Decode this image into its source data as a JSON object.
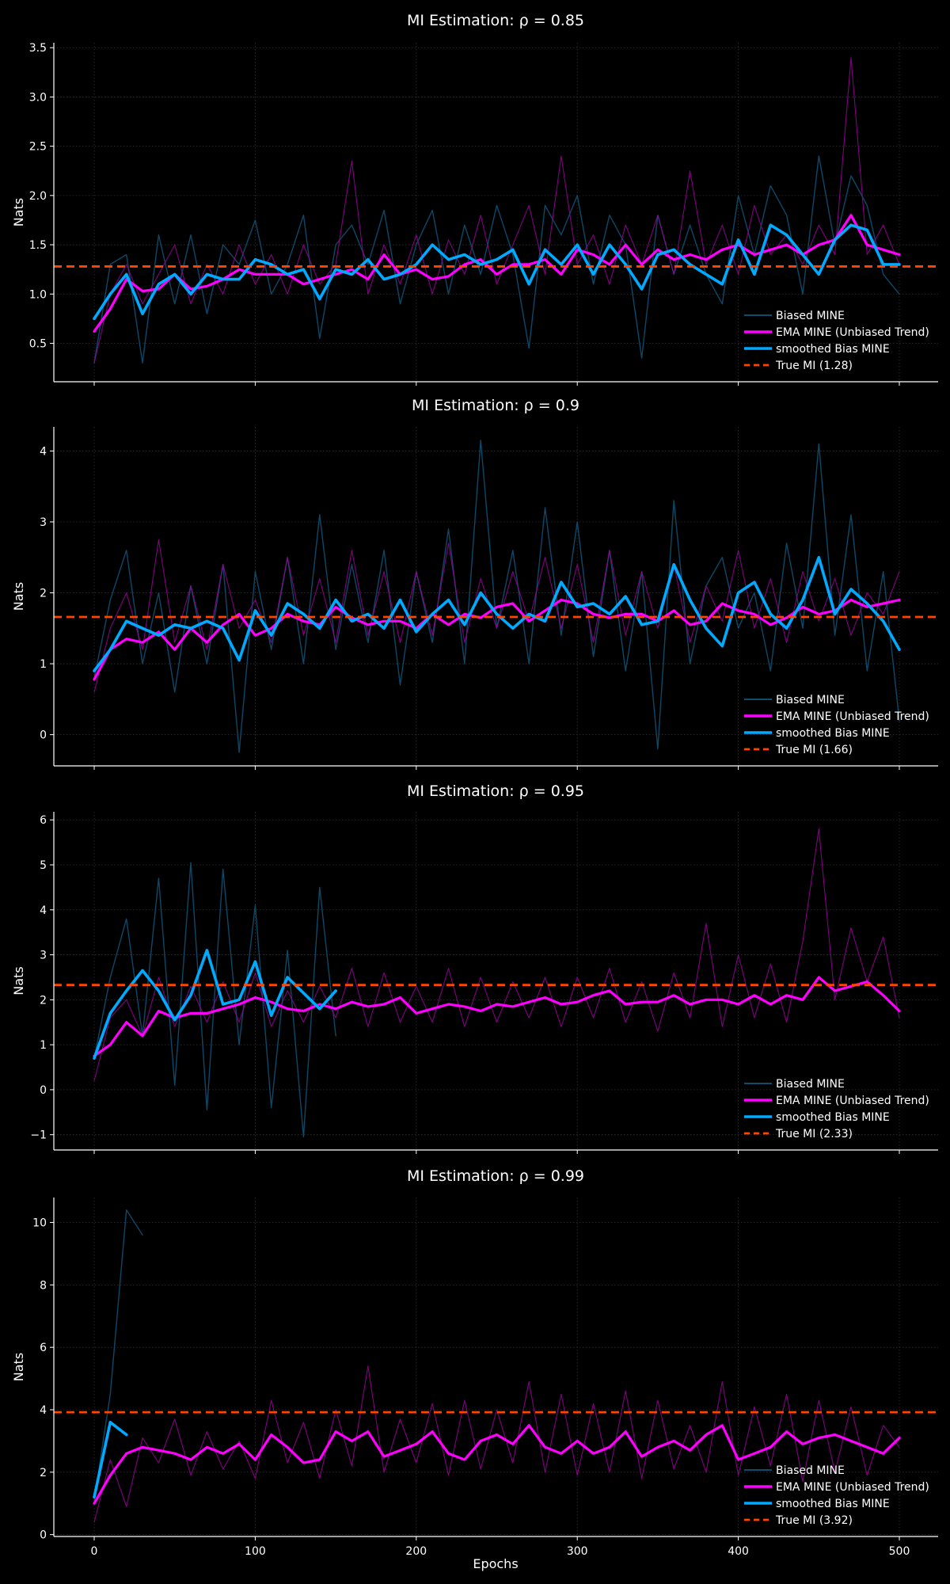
{
  "colors": {
    "background": "#000000",
    "biased_raw": "#0e4c6e",
    "ema_raw": "#9a009a",
    "ema": "#ff00ff",
    "smoothed_bias": "#00aaff",
    "true_mi": "#ff4500",
    "axis": "#ffffff",
    "grid": "#333333"
  },
  "epochs": [
    0,
    10,
    20,
    30,
    40,
    50,
    60,
    70,
    80,
    90,
    100,
    110,
    120,
    130,
    140,
    150,
    160,
    170,
    180,
    190,
    200,
    210,
    220,
    230,
    240,
    250,
    260,
    270,
    280,
    290,
    300,
    310,
    320,
    330,
    340,
    350,
    360,
    370,
    380,
    390,
    400,
    410,
    420,
    430,
    440,
    450,
    460,
    470,
    480,
    490,
    500
  ],
  "chart_data": [
    {
      "type": "line",
      "title": "MI Estimation: ρ = 0.85",
      "xlabel": "",
      "ylabel": "Nats",
      "xlim": [
        -25,
        525
      ],
      "ylim": [
        0.11,
        3.55
      ],
      "xticks": [
        0,
        100,
        200,
        300,
        400,
        500
      ],
      "xtick_labels_shown": false,
      "yticks": [
        0.5,
        1.0,
        1.5,
        2.0,
        2.5,
        3.0,
        3.5
      ],
      "ytick_labels": [
        "0.5",
        "1.0",
        "1.5",
        "2.0",
        "2.5",
        "3.0",
        "3.5"
      ],
      "grid": true,
      "legend_position": "lower-right",
      "true_mi": 1.28,
      "legend": [
        "Biased MINE",
        "EMA MINE (Unbiased Trend)",
        " smoothed Bias MINE",
        "True MI (1.28)"
      ],
      "series": {
        "biased_raw": [
          0.3,
          1.3,
          1.4,
          0.3,
          1.6,
          0.9,
          1.6,
          0.8,
          1.5,
          1.3,
          1.75,
          1.0,
          1.3,
          1.8,
          0.55,
          1.5,
          1.7,
          1.3,
          1.85,
          0.9,
          1.5,
          1.85,
          1.0,
          1.7,
          1.2,
          1.9,
          1.4,
          0.45,
          1.9,
          1.6,
          2.0,
          1.1,
          1.8,
          1.5,
          0.35,
          1.8,
          1.2,
          1.7,
          1.2,
          0.9,
          2.0,
          1.4,
          2.1,
          1.8,
          1.0,
          2.4,
          1.5,
          2.2,
          1.9,
          1.2,
          1.0
        ],
        "ema_raw": [
          0.3,
          1.0,
          1.3,
          0.9,
          1.2,
          1.5,
          0.9,
          1.3,
          1.0,
          1.5,
          1.1,
          1.4,
          1.0,
          1.5,
          1.1,
          1.3,
          2.35,
          1.0,
          1.5,
          1.1,
          1.6,
          1.0,
          1.55,
          1.2,
          1.8,
          1.1,
          1.5,
          1.9,
          1.2,
          2.4,
          1.3,
          1.6,
          1.1,
          1.7,
          1.3,
          1.8,
          1.2,
          2.25,
          1.3,
          1.7,
          1.2,
          1.9,
          1.4,
          1.6,
          1.3,
          1.7,
          1.4,
          3.4,
          1.4,
          1.7,
          1.3
        ],
        "ema": [
          0.62,
          0.85,
          1.15,
          1.03,
          1.05,
          1.2,
          1.05,
          1.08,
          1.15,
          1.25,
          1.2,
          1.2,
          1.2,
          1.1,
          1.15,
          1.2,
          1.25,
          1.15,
          1.4,
          1.2,
          1.25,
          1.15,
          1.18,
          1.3,
          1.35,
          1.2,
          1.3,
          1.3,
          1.35,
          1.2,
          1.45,
          1.4,
          1.3,
          1.5,
          1.3,
          1.45,
          1.35,
          1.4,
          1.35,
          1.45,
          1.5,
          1.4,
          1.45,
          1.5,
          1.4,
          1.5,
          1.55,
          1.8,
          1.5,
          1.45,
          1.4
        ],
        "smoothed_bias": [
          0.75,
          1.0,
          1.2,
          0.8,
          1.1,
          1.2,
          1.0,
          1.2,
          1.15,
          1.15,
          1.35,
          1.3,
          1.2,
          1.25,
          0.95,
          1.25,
          1.2,
          1.35,
          1.15,
          1.2,
          1.3,
          1.5,
          1.35,
          1.4,
          1.3,
          1.35,
          1.45,
          1.1,
          1.45,
          1.3,
          1.5,
          1.2,
          1.5,
          1.3,
          1.05,
          1.4,
          1.45,
          1.3,
          1.2,
          1.1,
          1.55,
          1.2,
          1.7,
          1.6,
          1.4,
          1.2,
          1.55,
          1.7,
          1.65,
          1.3,
          1.3
        ]
      }
    },
    {
      "type": "line",
      "title": "MI Estimation: ρ = 0.9",
      "xlabel": "",
      "ylabel": "Nats",
      "xlim": [
        -25,
        525
      ],
      "ylim": [
        -0.44,
        4.34
      ],
      "xticks": [
        0,
        100,
        200,
        300,
        400,
        500
      ],
      "xtick_labels_shown": false,
      "yticks": [
        0,
        1,
        2,
        3,
        4
      ],
      "ytick_labels": [
        "0",
        "1",
        "2",
        "3",
        "4"
      ],
      "grid": true,
      "legend_position": "lower-right",
      "true_mi": 1.66,
      "legend": [
        "Biased MINE",
        "EMA MINE (Unbiased Trend)",
        " smoothed Bias MINE",
        "True MI (1.66)"
      ],
      "series": {
        "biased_raw": [
          0.8,
          1.9,
          2.6,
          1.0,
          2.0,
          0.6,
          2.1,
          1.0,
          2.4,
          -0.25,
          2.3,
          1.2,
          2.5,
          1.0,
          3.1,
          1.2,
          2.4,
          1.3,
          2.6,
          0.7,
          2.3,
          1.3,
          2.9,
          1.0,
          4.15,
          1.5,
          2.6,
          1.0,
          3.2,
          1.4,
          3.0,
          1.1,
          2.6,
          0.9,
          2.3,
          -0.2,
          3.3,
          1.0,
          2.1,
          2.5,
          1.5,
          2.0,
          0.9,
          2.7,
          1.5,
          4.1,
          1.4,
          3.1,
          0.9,
          2.3,
          0.2
        ],
        "ema_raw": [
          0.6,
          1.5,
          2.0,
          1.2,
          2.75,
          1.3,
          2.1,
          1.2,
          2.4,
          1.5,
          1.9,
          1.3,
          2.5,
          1.4,
          2.2,
          1.3,
          2.6,
          1.4,
          2.3,
          1.3,
          2.3,
          1.4,
          2.7,
          1.3,
          2.2,
          1.5,
          2.3,
          1.6,
          2.5,
          1.5,
          2.4,
          1.3,
          2.6,
          1.4,
          2.3,
          1.5,
          2.4,
          1.3,
          2.1,
          1.6,
          2.6,
          1.5,
          2.2,
          1.3,
          2.3,
          1.6,
          2.2,
          1.4,
          2.0,
          1.7,
          2.3
        ],
        "ema": [
          0.78,
          1.2,
          1.35,
          1.3,
          1.45,
          1.2,
          1.5,
          1.3,
          1.55,
          1.7,
          1.4,
          1.5,
          1.7,
          1.6,
          1.55,
          1.8,
          1.65,
          1.55,
          1.6,
          1.6,
          1.5,
          1.7,
          1.55,
          1.7,
          1.65,
          1.8,
          1.85,
          1.6,
          1.75,
          1.9,
          1.85,
          1.7,
          1.65,
          1.7,
          1.7,
          1.6,
          1.75,
          1.55,
          1.6,
          1.85,
          1.75,
          1.7,
          1.55,
          1.65,
          1.8,
          1.7,
          1.75,
          1.9,
          1.8,
          1.85,
          1.9
        ],
        "smoothed_bias": [
          0.9,
          1.2,
          1.6,
          1.5,
          1.4,
          1.55,
          1.5,
          1.6,
          1.5,
          1.05,
          1.75,
          1.4,
          1.85,
          1.7,
          1.5,
          1.9,
          1.6,
          1.7,
          1.5,
          1.9,
          1.45,
          1.7,
          1.9,
          1.55,
          2.0,
          1.7,
          1.5,
          1.7,
          1.6,
          2.15,
          1.8,
          1.85,
          1.7,
          1.95,
          1.55,
          1.6,
          2.4,
          1.9,
          1.5,
          1.25,
          2.0,
          2.15,
          1.7,
          1.5,
          1.9,
          2.5,
          1.7,
          2.05,
          1.85,
          1.6,
          1.2
        ]
      }
    },
    {
      "type": "line",
      "title": "MI Estimation: ρ = 0.95",
      "xlabel": "",
      "ylabel": "Nats",
      "xlim": [
        -25,
        525
      ],
      "ylim": [
        -1.34,
        6.18
      ],
      "xticks": [
        0,
        100,
        200,
        300,
        400,
        500
      ],
      "xtick_labels_shown": false,
      "yticks": [
        -1,
        0,
        1,
        2,
        3,
        4,
        5,
        6
      ],
      "ytick_labels": [
        "−1",
        "0",
        "1",
        "2",
        "3",
        "4",
        "5",
        "6"
      ],
      "grid": true,
      "legend_position": "lower-right",
      "true_mi": 2.33,
      "legend": [
        "Biased MINE",
        "EMA MINE (Unbiased Trend)",
        " smoothed Bias MINE",
        "True MI (2.33)"
      ],
      "series": {
        "biased_raw": [
          0.7,
          2.5,
          3.8,
          1.2,
          4.7,
          0.1,
          5.05,
          -0.45,
          4.9,
          1.0,
          4.1,
          -0.4,
          3.1,
          -1.05,
          4.5,
          1.2,
          null,
          null,
          null,
          null,
          null,
          null,
          null,
          null,
          null,
          null,
          null,
          null,
          null,
          null,
          null,
          null,
          null,
          null,
          null,
          null,
          null,
          null,
          null,
          null,
          null,
          null,
          null,
          null,
          null,
          null,
          null,
          null,
          null,
          null,
          null
        ],
        "ema_raw": [
          0.2,
          1.6,
          2.0,
          1.2,
          2.5,
          1.4,
          2.3,
          1.5,
          2.4,
          1.5,
          2.6,
          1.4,
          2.2,
          1.5,
          2.3,
          1.6,
          2.7,
          1.4,
          2.6,
          1.5,
          2.3,
          1.5,
          2.7,
          1.4,
          2.5,
          1.5,
          2.4,
          1.6,
          2.5,
          1.4,
          2.5,
          1.6,
          2.7,
          1.5,
          2.4,
          1.3,
          2.6,
          1.6,
          3.7,
          1.4,
          3.0,
          1.6,
          2.8,
          1.5,
          3.3,
          5.8,
          2.0,
          3.6,
          2.4,
          3.4,
          1.6
        ],
        "ema": [
          0.75,
          1.0,
          1.5,
          1.2,
          1.75,
          1.6,
          1.7,
          1.7,
          1.8,
          1.9,
          2.05,
          1.95,
          1.8,
          1.75,
          1.9,
          1.8,
          1.95,
          1.85,
          1.9,
          2.05,
          1.7,
          1.8,
          1.9,
          1.85,
          1.75,
          1.9,
          1.85,
          1.95,
          2.05,
          1.9,
          1.95,
          2.1,
          2.2,
          1.9,
          1.95,
          1.95,
          2.1,
          1.9,
          2.0,
          2.0,
          1.9,
          2.1,
          1.9,
          2.1,
          2.0,
          2.5,
          2.2,
          2.3,
          2.4,
          2.1,
          1.75
        ],
        "smoothed_bias": [
          0.7,
          1.7,
          2.2,
          2.65,
          2.2,
          1.55,
          2.1,
          3.1,
          1.9,
          2.0,
          2.85,
          1.65,
          2.5,
          2.15,
          1.8,
          2.2,
          null,
          null,
          null,
          null,
          null,
          null,
          null,
          null,
          null,
          null,
          null,
          null,
          null,
          null,
          null,
          null,
          null,
          null,
          null,
          null,
          null,
          null,
          null,
          null,
          null,
          null,
          null,
          null,
          null,
          null,
          null,
          null,
          null,
          null,
          null
        ]
      }
    },
    {
      "type": "line",
      "title": "MI Estimation: ρ = 0.99",
      "xlabel": "Epochs",
      "ylabel": "Nats",
      "xlim": [
        -25,
        525
      ],
      "ylim": [
        -0.06,
        10.8
      ],
      "xticks": [
        0,
        100,
        200,
        300,
        400,
        500
      ],
      "xtick_labels": [
        "0",
        "100",
        "200",
        "300",
        "400",
        "500"
      ],
      "xtick_labels_shown": true,
      "yticks": [
        0,
        2,
        4,
        6,
        8,
        10
      ],
      "ytick_labels": [
        "0",
        "2",
        "4",
        "6",
        "8",
        "10"
      ],
      "grid": true,
      "legend_position": "lower-right",
      "true_mi": 3.92,
      "legend": [
        "Biased MINE",
        "EMA MINE (Unbiased Trend)",
        " smoothed Bias MINE",
        "True MI (3.92)"
      ],
      "series": {
        "biased_raw": [
          1.1,
          4.5,
          10.4,
          9.6,
          null,
          null,
          null,
          null,
          null,
          null,
          null,
          null,
          null,
          null,
          null,
          null,
          null,
          null,
          null,
          null,
          null,
          null,
          null,
          null,
          null,
          null,
          null,
          null,
          null,
          null,
          null,
          null,
          null,
          null,
          null,
          null,
          null,
          null,
          null,
          null,
          null,
          null,
          null,
          null,
          null,
          null,
          null,
          null,
          null,
          null,
          null
        ],
        "ema_raw": [
          0.4,
          2.4,
          0.9,
          3.1,
          2.3,
          3.7,
          1.9,
          3.3,
          2.1,
          3.0,
          1.8,
          4.3,
          2.3,
          3.6,
          1.8,
          4.0,
          2.2,
          5.4,
          2.0,
          3.7,
          2.3,
          4.2,
          1.9,
          4.3,
          2.1,
          4.0,
          2.3,
          4.9,
          2.0,
          4.5,
          1.9,
          4.2,
          2.0,
          4.6,
          1.8,
          4.3,
          2.1,
          3.5,
          2.0,
          4.9,
          1.9,
          4.1,
          2.2,
          4.5,
          1.7,
          4.3,
          2.0,
          4.1,
          1.9,
          3.5,
          2.8
        ],
        "ema": [
          1.0,
          1.9,
          2.6,
          2.8,
          2.7,
          2.6,
          2.4,
          2.8,
          2.6,
          2.9,
          2.4,
          3.2,
          2.8,
          2.3,
          2.4,
          3.3,
          3.0,
          3.3,
          2.5,
          2.7,
          2.9,
          3.3,
          2.6,
          2.4,
          3.0,
          3.2,
          2.9,
          3.5,
          2.8,
          2.6,
          3.0,
          2.6,
          2.8,
          3.3,
          2.5,
          2.8,
          3.0,
          2.7,
          3.2,
          3.5,
          2.4,
          2.6,
          2.8,
          3.3,
          2.9,
          3.1,
          3.2,
          3.0,
          2.8,
          2.6,
          3.1
        ],
        "smoothed_bias": [
          1.2,
          3.6,
          3.2,
          null,
          null,
          null,
          null,
          null,
          null,
          null,
          null,
          null,
          null,
          null,
          null,
          null,
          null,
          null,
          null,
          null,
          null,
          null,
          null,
          null,
          null,
          null,
          null,
          null,
          null,
          null,
          null,
          null,
          null,
          null,
          null,
          null,
          null,
          null,
          null,
          null,
          null,
          null,
          null,
          null,
          null,
          null,
          null,
          null,
          null,
          null,
          null
        ]
      }
    }
  ]
}
